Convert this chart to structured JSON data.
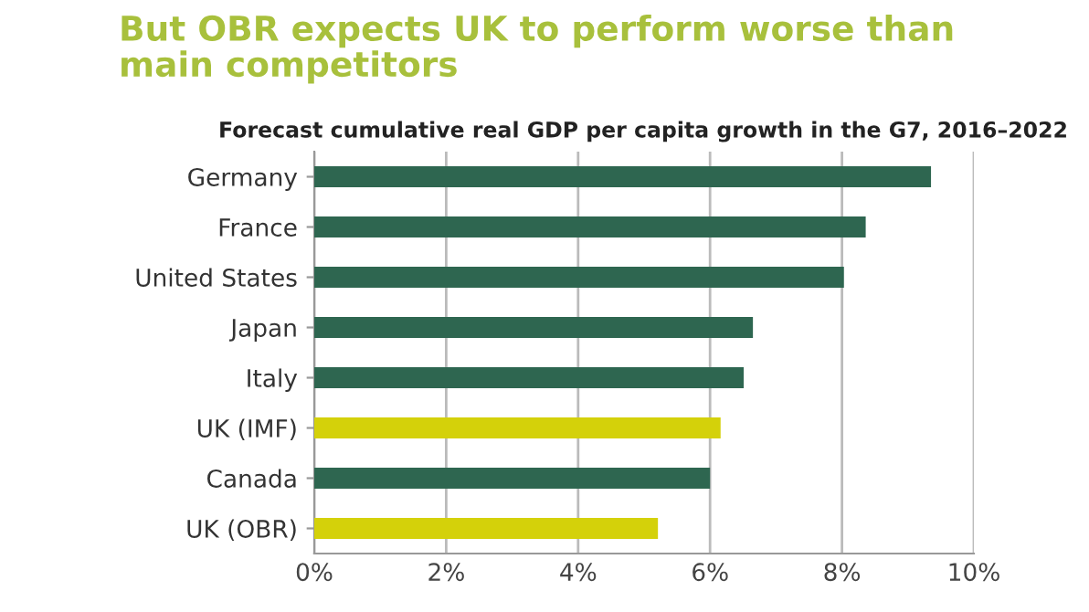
{
  "chart_data": {
    "type": "bar",
    "orientation": "horizontal",
    "title": "But OBR expects UK to perform worse than\nmain competitors",
    "subtitle": "Forecast cumulative real GDP per capita growth in the G7, 2016–2022",
    "categories": [
      "Germany",
      "France",
      "United States",
      "Japan",
      "Italy",
      "UK (IMF)",
      "Canada",
      "UK (OBR)"
    ],
    "values": [
      9.35,
      8.36,
      8.03,
      6.65,
      6.51,
      6.16,
      6.0,
      5.21
    ],
    "colors": [
      "#2e6650",
      "#2e6650",
      "#2e6650",
      "#2e6650",
      "#2e6650",
      "#d4d10a",
      "#2e6650",
      "#d4d10a"
    ],
    "xlim": [
      0,
      10
    ],
    "xticks": [
      {
        "value": 0,
        "label": "0%"
      },
      {
        "value": 2,
        "label": "2%"
      },
      {
        "value": 4,
        "label": "4%"
      },
      {
        "value": 6,
        "label": "6%"
      },
      {
        "value": 8,
        "label": "8%"
      },
      {
        "value": 10,
        "label": "10%"
      }
    ],
    "grid": "x",
    "legend": false
  }
}
